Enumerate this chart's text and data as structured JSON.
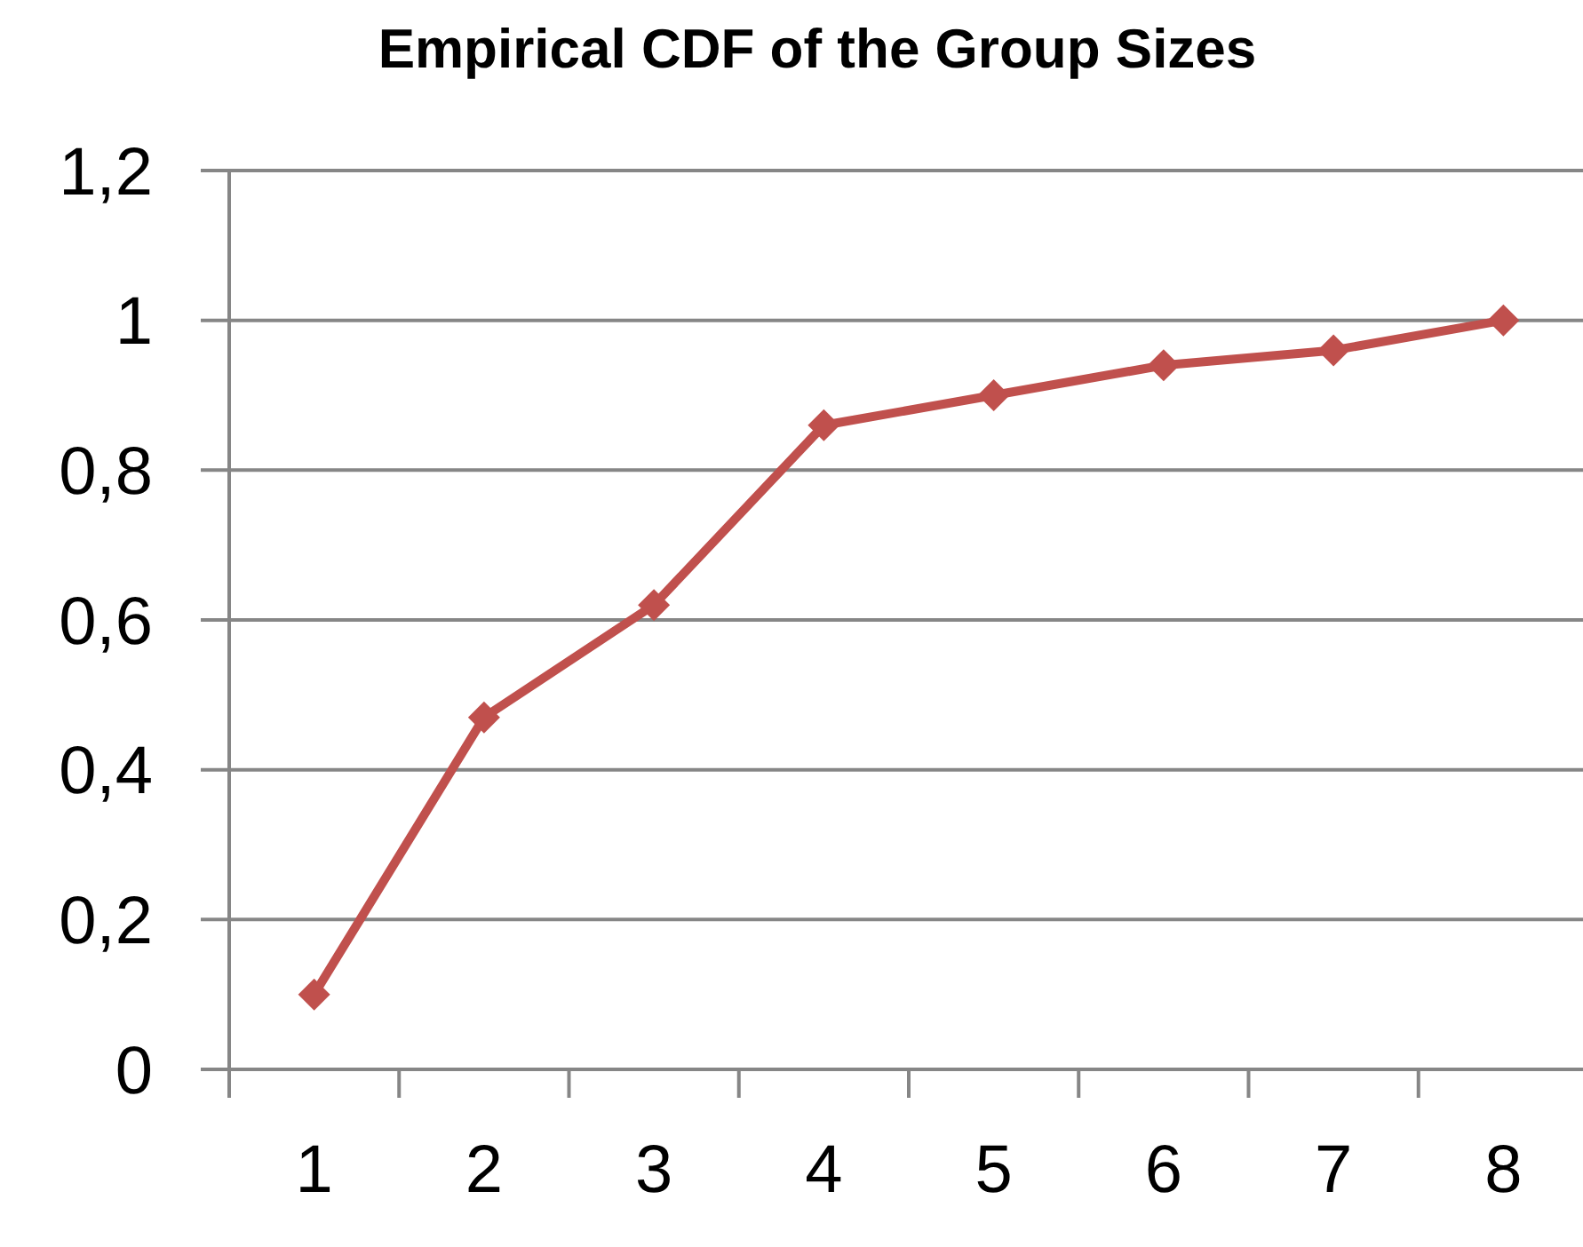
{
  "chart_data": {
    "type": "line",
    "title": "Empirical CDF of the Group Sizes",
    "categories": [
      "1",
      "2",
      "3",
      "4",
      "5",
      "6",
      "7",
      "8"
    ],
    "values": [
      0.1,
      0.47,
      0.62,
      0.86,
      0.9,
      0.94,
      0.96,
      1
    ],
    "color": "#c0504d",
    "ylim": [
      0,
      1.2
    ],
    "yticks": [
      0,
      {
        "value": 0.2,
        "label": "0,2"
      },
      {
        "value": 0.4,
        "label": "0,4"
      },
      {
        "value": 0.6,
        "label": "0,6"
      },
      {
        "value": 0.8,
        "label": "0,8"
      },
      1,
      {
        "value": 1.2,
        "label": "1,2"
      }
    ],
    "grid": "y",
    "marker": "diamond"
  }
}
